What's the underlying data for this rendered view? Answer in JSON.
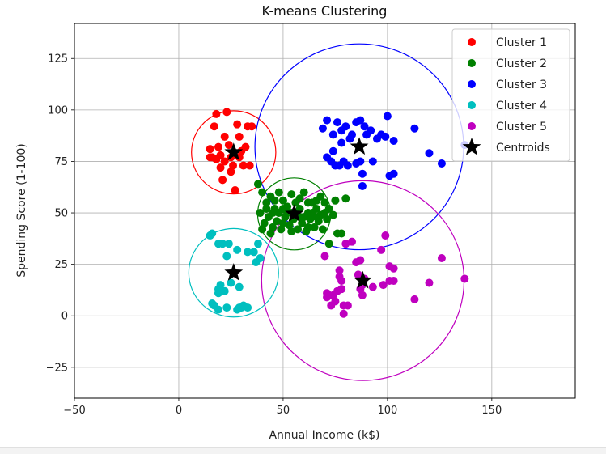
{
  "chart_data": {
    "type": "scatter",
    "title": "K-means Clustering",
    "xlabel": "Annual Income (k$)",
    "ylabel": "Spending Score (1-100)",
    "xlim": [
      -50,
      190
    ],
    "ylim": [
      -40,
      142
    ],
    "xticks": [
      -50,
      0,
      50,
      100,
      150
    ],
    "yticks": [
      -25,
      0,
      25,
      50,
      75,
      100,
      125
    ],
    "grid": true,
    "legend_position": "top-right",
    "series": [
      {
        "name": "Cluster 1",
        "color": "#ff0000",
        "points": [
          [
            18,
            98
          ],
          [
            23,
            99
          ],
          [
            17,
            92
          ],
          [
            28,
            93
          ],
          [
            33,
            92
          ],
          [
            35,
            92
          ],
          [
            22,
            87
          ],
          [
            29,
            87
          ],
          [
            19,
            82
          ],
          [
            24,
            83
          ],
          [
            15,
            81
          ],
          [
            32,
            82
          ],
          [
            16,
            77
          ],
          [
            20,
            78
          ],
          [
            25,
            77
          ],
          [
            29,
            77
          ],
          [
            18,
            76
          ],
          [
            22,
            75
          ],
          [
            26,
            73
          ],
          [
            31,
            73
          ],
          [
            34,
            73
          ],
          [
            20,
            72
          ],
          [
            25,
            70
          ],
          [
            21,
            66
          ],
          [
            27,
            61
          ],
          [
            15,
            77
          ],
          [
            30,
            80
          ]
        ],
        "circle": {
          "center": [
            26.3,
            79.4
          ],
          "radius": 20.2
        }
      },
      {
        "name": "Cluster 2",
        "color": "#008000",
        "points": [
          [
            38,
            64
          ],
          [
            40,
            60
          ],
          [
            42,
            55
          ],
          [
            44,
            58
          ],
          [
            46,
            52
          ],
          [
            48,
            60
          ],
          [
            50,
            56
          ],
          [
            52,
            50
          ],
          [
            54,
            59
          ],
          [
            56,
            55
          ],
          [
            58,
            52
          ],
          [
            60,
            60
          ],
          [
            62,
            55
          ],
          [
            64,
            50
          ],
          [
            66,
            48
          ],
          [
            68,
            58
          ],
          [
            70,
            55
          ],
          [
            72,
            52
          ],
          [
            74,
            49
          ],
          [
            76,
            40
          ],
          [
            39,
            50
          ],
          [
            41,
            45
          ],
          [
            43,
            48
          ],
          [
            45,
            43
          ],
          [
            47,
            46
          ],
          [
            49,
            42
          ],
          [
            51,
            48
          ],
          [
            53,
            44
          ],
          [
            55,
            47
          ],
          [
            57,
            42
          ],
          [
            59,
            45
          ],
          [
            61,
            41
          ],
          [
            63,
            47
          ],
          [
            65,
            43
          ],
          [
            67,
            46
          ],
          [
            69,
            42
          ],
          [
            71,
            47
          ],
          [
            40,
            42
          ],
          [
            44,
            40
          ],
          [
            48,
            50
          ],
          [
            50,
            45
          ],
          [
            52,
            53
          ],
          [
            54,
            41
          ],
          [
            56,
            50
          ],
          [
            58,
            57
          ],
          [
            60,
            48
          ],
          [
            62,
            43
          ],
          [
            64,
            55
          ],
          [
            66,
            52
          ],
          [
            68,
            49
          ],
          [
            42,
            52
          ],
          [
            46,
            56
          ],
          [
            50,
            52
          ],
          [
            54,
            50
          ],
          [
            58,
            48
          ],
          [
            62,
            50
          ],
          [
            66,
            56
          ],
          [
            70,
            50
          ],
          [
            72,
            35
          ],
          [
            75,
            56
          ],
          [
            78,
            40
          ],
          [
            80,
            57
          ],
          [
            45,
            50
          ]
        ],
        "circle": {
          "center": [
            55.3,
            49.5
          ],
          "radius": 17.5
        }
      },
      {
        "name": "Cluster 3",
        "color": "#0000ff",
        "points": [
          [
            69,
            91
          ],
          [
            71,
            95
          ],
          [
            74,
            88
          ],
          [
            76,
            94
          ],
          [
            78,
            90
          ],
          [
            80,
            92
          ],
          [
            82,
            86
          ],
          [
            85,
            94
          ],
          [
            87,
            95
          ],
          [
            89,
            92
          ],
          [
            92,
            90
          ],
          [
            95,
            86
          ],
          [
            97,
            88
          ],
          [
            100,
            97
          ],
          [
            103,
            85
          ],
          [
            113,
            91
          ],
          [
            120,
            79
          ],
          [
            126,
            74
          ],
          [
            71,
            77
          ],
          [
            73,
            75
          ],
          [
            75,
            73
          ],
          [
            77,
            73
          ],
          [
            79,
            75
          ],
          [
            81,
            73
          ],
          [
            85,
            74
          ],
          [
            87,
            75
          ],
          [
            88,
            69
          ],
          [
            88,
            63
          ],
          [
            93,
            75
          ],
          [
            101,
            68
          ],
          [
            103,
            69
          ],
          [
            78,
            84
          ],
          [
            83,
            88
          ],
          [
            90,
            88
          ],
          [
            99,
            87
          ],
          [
            137,
            83
          ],
          [
            74,
            80
          ]
        ],
        "circle": {
          "center": [
            86.5,
            82.1
          ],
          "radius": 50.0
        }
      },
      {
        "name": "Cluster 4",
        "color": "#00bfbf",
        "points": [
          [
            15,
            39
          ],
          [
            16,
            40
          ],
          [
            19,
            35
          ],
          [
            21,
            35
          ],
          [
            23,
            29
          ],
          [
            24,
            35
          ],
          [
            28,
            32
          ],
          [
            29,
            14
          ],
          [
            33,
            31
          ],
          [
            37,
            26
          ],
          [
            38,
            35
          ],
          [
            39,
            28
          ],
          [
            20,
            15
          ],
          [
            19,
            13
          ],
          [
            20,
            12
          ],
          [
            16,
            6
          ],
          [
            17,
            5
          ],
          [
            19,
            3
          ],
          [
            23,
            4
          ],
          [
            28,
            3
          ],
          [
            29,
            4
          ],
          [
            30,
            4
          ],
          [
            31,
            5
          ],
          [
            33,
            4
          ],
          [
            19,
            11
          ],
          [
            22,
            12
          ],
          [
            25,
            16
          ],
          [
            36,
            31
          ]
        ],
        "circle": {
          "center": [
            26.3,
            20.9
          ],
          "radius": 21.5
        }
      },
      {
        "name": "Cluster 5",
        "color": "#bf00bf",
        "points": [
          [
            70,
            29
          ],
          [
            71,
            11
          ],
          [
            71,
            9
          ],
          [
            72,
            10
          ],
          [
            73,
            5
          ],
          [
            74,
            10
          ],
          [
            75,
            7
          ],
          [
            76,
            12
          ],
          [
            77,
            22
          ],
          [
            77,
            19
          ],
          [
            78,
            13
          ],
          [
            78,
            17
          ],
          [
            79,
            1
          ],
          [
            79,
            5
          ],
          [
            80,
            35
          ],
          [
            81,
            5
          ],
          [
            83,
            36
          ],
          [
            85,
            26
          ],
          [
            86,
            20
          ],
          [
            87,
            27
          ],
          [
            87,
            13
          ],
          [
            88,
            15
          ],
          [
            88,
            10
          ],
          [
            89,
            18
          ],
          [
            93,
            14
          ],
          [
            97,
            32
          ],
          [
            98,
            15
          ],
          [
            99,
            39
          ],
          [
            101,
            24
          ],
          [
            101,
            17
          ],
          [
            103,
            23
          ],
          [
            103,
            17
          ],
          [
            113,
            8
          ],
          [
            120,
            16
          ],
          [
            126,
            28
          ],
          [
            137,
            18
          ]
        ],
        "circle": {
          "center": [
            88.2,
            17.1
          ],
          "radius": 48.5
        }
      }
    ],
    "centroids": {
      "name": "Centroids",
      "color": "#000000",
      "points": [
        [
          26.3,
          79.4
        ],
        [
          55.3,
          49.5
        ],
        [
          86.5,
          82.1
        ],
        [
          26.3,
          20.9
        ],
        [
          88.2,
          17.1
        ]
      ]
    }
  }
}
